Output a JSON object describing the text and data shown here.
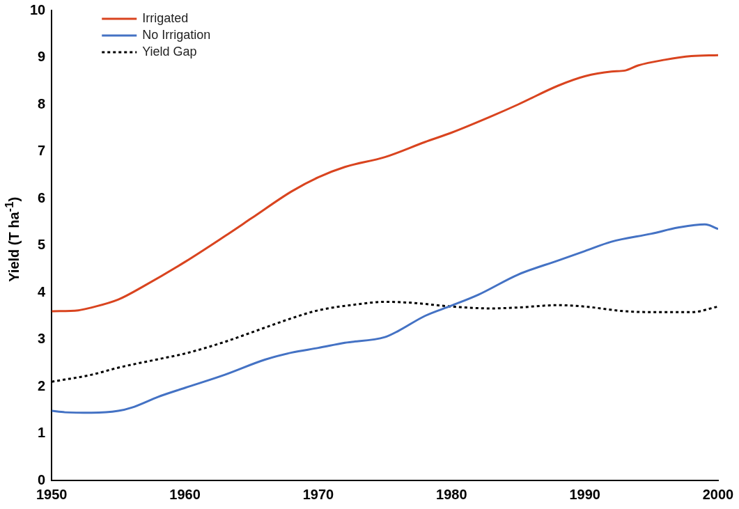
{
  "chart_data": {
    "type": "line",
    "ylabel": "Yield (T ha$^{-1}$)",
    "xlim": [
      1950,
      2000
    ],
    "xticks": [
      1950,
      1960,
      1970,
      1980,
      1990,
      2000
    ],
    "ylim": [
      0,
      10
    ],
    "yticks": [
      0,
      1,
      2,
      3,
      4,
      5,
      6,
      7,
      8,
      9,
      10
    ],
    "grid": false,
    "legend": "top left",
    "marker": "none",
    "series": [
      {
        "name": "Irrigated",
        "color": "#d9441f",
        "line_style": "solid",
        "x": [
          1950,
          1952,
          1953,
          1955,
          1957,
          1960,
          1963,
          1965,
          1968,
          1970,
          1972,
          1975,
          1978,
          1980,
          1983,
          1985,
          1988,
          1990,
          1992,
          1993,
          1994,
          1996,
          1998,
          2000
        ],
        "values": [
          3.6,
          3.62,
          3.68,
          3.85,
          4.15,
          4.65,
          5.2,
          5.58,
          6.15,
          6.45,
          6.67,
          6.88,
          7.2,
          7.4,
          7.75,
          8.0,
          8.4,
          8.6,
          8.7,
          8.72,
          8.83,
          8.95,
          9.03,
          9.05
        ]
      },
      {
        "name": "No Irrigation",
        "color": "#4472c4",
        "line_style": "solid",
        "x": [
          1950,
          1951,
          1953,
          1955,
          1956,
          1958,
          1960,
          1963,
          1966,
          1968,
          1970,
          1972,
          1975,
          1976,
          1978,
          1980,
          1982,
          1985,
          1988,
          1990,
          1992,
          1995,
          1997,
          1999,
          2000
        ],
        "values": [
          1.48,
          1.45,
          1.44,
          1.48,
          1.55,
          1.78,
          1.97,
          2.25,
          2.57,
          2.72,
          2.82,
          2.93,
          3.05,
          3.18,
          3.5,
          3.72,
          3.95,
          4.38,
          4.68,
          4.88,
          5.08,
          5.25,
          5.38,
          5.45,
          5.35
        ]
      },
      {
        "name": "Yield Gap",
        "color": "#000000",
        "line_style": "dotted",
        "x": [
          1950,
          1953,
          1955,
          1958,
          1960,
          1963,
          1965,
          1968,
          1970,
          1973,
          1975,
          1977,
          1980,
          1983,
          1985,
          1988,
          1990,
          1993,
          1996,
          1998,
          2000
        ],
        "values": [
          2.1,
          2.25,
          2.4,
          2.58,
          2.7,
          2.95,
          3.15,
          3.45,
          3.62,
          3.75,
          3.8,
          3.78,
          3.7,
          3.66,
          3.68,
          3.73,
          3.7,
          3.6,
          3.58,
          3.58,
          3.7
        ]
      }
    ]
  }
}
